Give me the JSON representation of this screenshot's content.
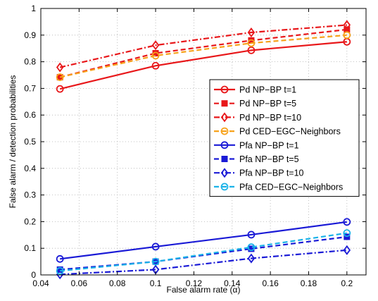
{
  "chart_data": {
    "type": "line",
    "title": "",
    "xlabel": "False alarm rate (α)",
    "ylabel": "False alarm / detection probabilities",
    "xlim": [
      0.04,
      0.21
    ],
    "ylim": [
      0,
      1
    ],
    "xticks": [
      0.04,
      0.06,
      0.08,
      0.1,
      0.12,
      0.14,
      0.16,
      0.18,
      0.2
    ],
    "xtick_labels": [
      "0.04",
      "0.06",
      "0.08",
      "0.1",
      "0.12",
      "0.14",
      "0.16",
      "0.18",
      "0.2"
    ],
    "yticks": [
      0,
      0.1,
      0.2,
      0.3,
      0.4,
      0.5,
      0.6,
      0.7,
      0.8,
      0.9,
      1
    ],
    "ytick_labels": [
      "0",
      "0.1",
      "0.2",
      "0.3",
      "0.4",
      "0.5",
      "0.6",
      "0.7",
      "0.8",
      "0.9",
      "1"
    ],
    "grid": true,
    "legend_position": "right",
    "x": [
      0.05,
      0.1,
      0.15,
      0.2
    ],
    "series": [
      {
        "name": "Pd NP−BP t=1",
        "values": [
          0.698,
          0.785,
          0.843,
          0.875
        ],
        "color": "#e8171a",
        "dash": "solid",
        "marker": "circle"
      },
      {
        "name": "Pd NP−BP t=5",
        "values": [
          0.742,
          0.832,
          0.88,
          0.921
        ],
        "color": "#e8171a",
        "dash": "dashed",
        "marker": "square"
      },
      {
        "name": "Pd NP−BP t=10",
        "values": [
          0.779,
          0.862,
          0.91,
          0.938
        ],
        "color": "#e8171a",
        "dash": "dashdot",
        "marker": "diamond"
      },
      {
        "name": "Pd CED−EGC−Neighbors",
        "values": [
          0.742,
          0.823,
          0.87,
          0.9
        ],
        "color": "#f7a21b",
        "dash": "dashed",
        "marker": "circle"
      },
      {
        "name": "Pfa NP−BP t=1",
        "values": [
          0.06,
          0.106,
          0.151,
          0.199
        ],
        "color": "#1a1ad6",
        "dash": "solid",
        "marker": "circle"
      },
      {
        "name": "Pfa NP−BP t=5",
        "values": [
          0.02,
          0.05,
          0.098,
          0.143
        ],
        "color": "#1a1ad6",
        "dash": "dashed",
        "marker": "square"
      },
      {
        "name": "Pfa NP−BP t=10",
        "values": [
          0.002,
          0.02,
          0.062,
          0.093
        ],
        "color": "#1a1ad6",
        "dash": "dashdot",
        "marker": "diamond"
      },
      {
        "name": "Pfa CED−EGC−Neighbors",
        "values": [
          0.015,
          0.05,
          0.104,
          0.157
        ],
        "color": "#1ab2e8",
        "dash": "dashed",
        "marker": "circle"
      }
    ]
  }
}
